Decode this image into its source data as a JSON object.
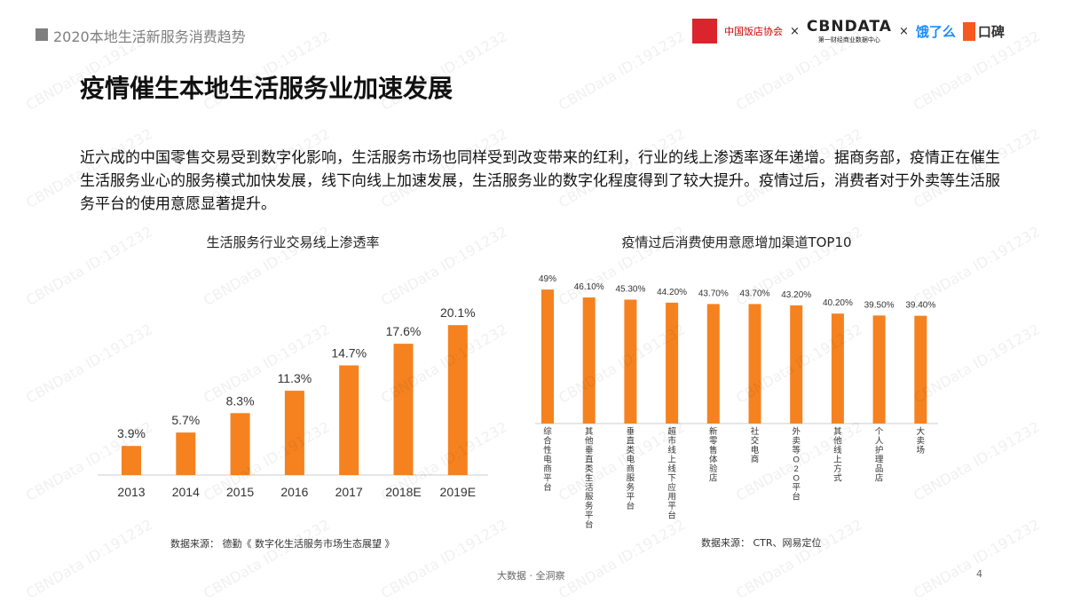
{
  "header": {
    "title": "2020本地生活新服务消费趋势",
    "logos": [
      "中国饭店协会",
      "CBNDATA",
      "第一财经商业数据中心",
      "饿了么",
      "口碑"
    ],
    "sep": "×"
  },
  "title": "疫情催生本地生活服务业加速发展",
  "body": "近六成的中国零售交易受到数字化影响，生活服务市场也同样受到改变带来的红利，行业的线上渗透率逐年递增。据商务部，疫情正在催生生活服务业心的服务模式加快发展，线下向线上加速发展，生活服务业的数字化程度得到了较大提升。疫情过后，消费者对于外卖等生活服务平台的使用意愿显著提升。",
  "watermark": "CBNData ID:191232",
  "footer": {
    "tagline": "大数据 · 全洞察",
    "page": "4"
  },
  "colors": {
    "bar": "#f5821f"
  },
  "chart_data": [
    {
      "type": "bar",
      "title": "生活服务行业交易线上渗透率",
      "categories": [
        "2013",
        "2014",
        "2015",
        "2016",
        "2017",
        "2018E",
        "2019E"
      ],
      "values": [
        3.9,
        5.7,
        8.3,
        11.3,
        14.7,
        17.6,
        20.1
      ],
      "labels": [
        "3.9%",
        "5.7%",
        "8.3%",
        "11.3%",
        "14.7%",
        "17.6%",
        "20.1%"
      ],
      "source": "数据来源： 德勤《 数字化生活服务市场生态展望 》"
    },
    {
      "type": "bar",
      "title": "疫情过后消费使用意愿增加渠道TOP10",
      "categories": [
        "综合性电商平台",
        "其他垂直类生活服务平台",
        "垂直类电商服务平台",
        "超市线上线下应用平台",
        "新零售体验店",
        "社交电商",
        "外卖等O2O平台",
        "其他线上方式",
        "个人护理品店",
        "大卖场"
      ],
      "values": [
        49,
        46.1,
        45.3,
        44.2,
        43.7,
        43.7,
        43.2,
        40.2,
        39.5,
        39.4
      ],
      "labels": [
        "49%",
        "46.10%",
        "45.30%",
        "44.20%",
        "43.70%",
        "43.70%",
        "43.20%",
        "40.20%",
        "39.50%",
        "39.40%"
      ],
      "source": "数据来源： CTR、网易定位"
    }
  ]
}
